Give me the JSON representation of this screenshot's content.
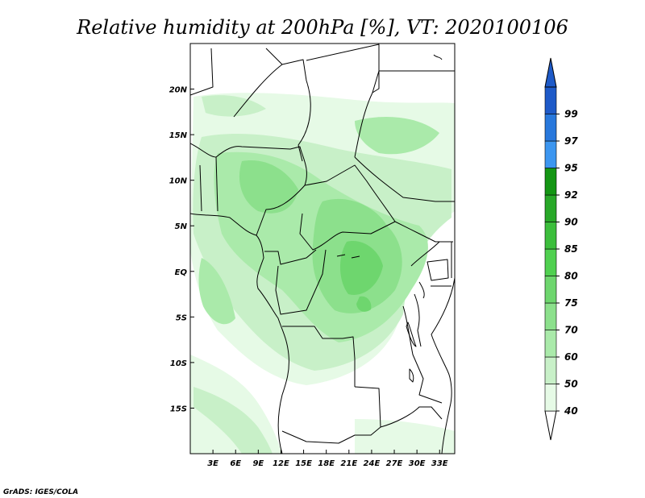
{
  "title": "Relative humidity at 200hPa [%], VT: 2020100106",
  "credit": "GrADS: IGES/COLA",
  "map": {
    "lon_range": [
      0,
      35
    ],
    "lat_range": [
      -20,
      25
    ],
    "lat_ticks": [
      {
        "value": 20,
        "label": "20N"
      },
      {
        "value": 15,
        "label": "15N"
      },
      {
        "value": 10,
        "label": "10N"
      },
      {
        "value": 5,
        "label": "5N"
      },
      {
        "value": 0,
        "label": "EQ"
      },
      {
        "value": -5,
        "label": "5S"
      },
      {
        "value": -10,
        "label": "10S"
      },
      {
        "value": -15,
        "label": "15S"
      }
    ],
    "lon_ticks": [
      {
        "value": 3,
        "label": "3E"
      },
      {
        "value": 6,
        "label": "6E"
      },
      {
        "value": 9,
        "label": "9E"
      },
      {
        "value": 12,
        "label": "12E"
      },
      {
        "value": 15,
        "label": "15E"
      },
      {
        "value": 18,
        "label": "18E"
      },
      {
        "value": 21,
        "label": "21E"
      },
      {
        "value": 24,
        "label": "24E"
      },
      {
        "value": 27,
        "label": "27E"
      },
      {
        "value": 30,
        "label": "30E"
      },
      {
        "value": 33,
        "label": "33E"
      }
    ]
  },
  "colorbar": {
    "levels": [
      {
        "label": "40",
        "color": "#e6fae6"
      },
      {
        "label": "50",
        "color": "#c8f0c8"
      },
      {
        "label": "60",
        "color": "#aaeaaa"
      },
      {
        "label": "70",
        "color": "#8ce08c"
      },
      {
        "label": "75",
        "color": "#6ed66e"
      },
      {
        "label": "80",
        "color": "#50d050"
      },
      {
        "label": "85",
        "color": "#3cbe3c"
      },
      {
        "label": "90",
        "color": "#28a828"
      },
      {
        "label": "92",
        "color": "#149614"
      },
      {
        "label": "95",
        "color": "#3c96f0"
      },
      {
        "label": "97",
        "color": "#2878dc"
      },
      {
        "label": "99",
        "color": "#1e5ac8"
      }
    ],
    "under_color": "#ffffff",
    "over_color": "#1e5ac8"
  }
}
